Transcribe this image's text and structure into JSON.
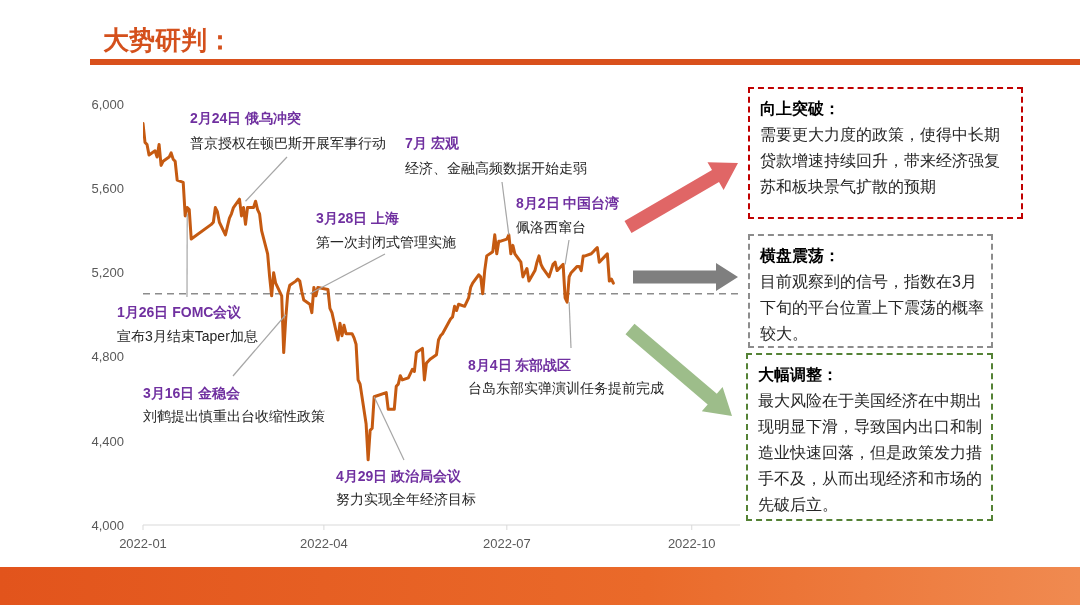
{
  "chart_data": [
    {
      "type": "line",
      "title": "大势研判：",
      "x": [
        "2022-01-04",
        "2022-01-05",
        "2022-01-06",
        "2022-01-07",
        "2022-01-10",
        "2022-01-11",
        "2022-01-12",
        "2022-01-13",
        "2022-01-14",
        "2022-01-17",
        "2022-01-18",
        "2022-01-19",
        "2022-01-20",
        "2022-01-21",
        "2022-01-24",
        "2022-01-25",
        "2022-01-26",
        "2022-01-27",
        "2022-01-28",
        "2022-02-07",
        "2022-02-08",
        "2022-02-09",
        "2022-02-10",
        "2022-02-11",
        "2022-02-14",
        "2022-02-15",
        "2022-02-16",
        "2022-02-17",
        "2022-02-18",
        "2022-02-21",
        "2022-02-22",
        "2022-02-23",
        "2022-02-24",
        "2022-02-25",
        "2022-02-28",
        "2022-03-01",
        "2022-03-02",
        "2022-03-03",
        "2022-03-04",
        "2022-03-07",
        "2022-03-08",
        "2022-03-09",
        "2022-03-10",
        "2022-03-11",
        "2022-03-14",
        "2022-03-15",
        "2022-03-16",
        "2022-03-17",
        "2022-03-18",
        "2022-03-21",
        "2022-03-22",
        "2022-03-23",
        "2022-03-24",
        "2022-03-25",
        "2022-03-28",
        "2022-03-29",
        "2022-03-30",
        "2022-03-31",
        "2022-04-01",
        "2022-04-06",
        "2022-04-07",
        "2022-04-08",
        "2022-04-11",
        "2022-04-12",
        "2022-04-13",
        "2022-04-14",
        "2022-04-15",
        "2022-04-18",
        "2022-04-19",
        "2022-04-20",
        "2022-04-21",
        "2022-04-22",
        "2022-04-25",
        "2022-04-26",
        "2022-04-27",
        "2022-04-28",
        "2022-04-29",
        "2022-05-05",
        "2022-05-06",
        "2022-05-09",
        "2022-05-10",
        "2022-05-11",
        "2022-05-12",
        "2022-05-13",
        "2022-05-16",
        "2022-05-17",
        "2022-05-18",
        "2022-05-19",
        "2022-05-20",
        "2022-05-23",
        "2022-05-24",
        "2022-05-25",
        "2022-05-26",
        "2022-05-27",
        "2022-05-30",
        "2022-05-31",
        "2022-06-01",
        "2022-06-02",
        "2022-06-06",
        "2022-06-07",
        "2022-06-08",
        "2022-06-09",
        "2022-06-10",
        "2022-06-13",
        "2022-06-14",
        "2022-06-15",
        "2022-06-16",
        "2022-06-17",
        "2022-06-20",
        "2022-06-21",
        "2022-06-22",
        "2022-06-23",
        "2022-06-24",
        "2022-06-27",
        "2022-06-28",
        "2022-06-29",
        "2022-06-30",
        "2022-07-01",
        "2022-07-04",
        "2022-07-05",
        "2022-07-06",
        "2022-07-07",
        "2022-07-08",
        "2022-07-11",
        "2022-07-12",
        "2022-07-13",
        "2022-07-14",
        "2022-07-15",
        "2022-07-18",
        "2022-07-19",
        "2022-07-20",
        "2022-07-21",
        "2022-07-22",
        "2022-07-25",
        "2022-07-26",
        "2022-07-27",
        "2022-07-28",
        "2022-07-29",
        "2022-08-01",
        "2022-08-02",
        "2022-08-03",
        "2022-08-04",
        "2022-08-05",
        "2022-08-08",
        "2022-08-09",
        "2022-08-10",
        "2022-08-11",
        "2022-08-12",
        "2022-08-15",
        "2022-08-16",
        "2022-08-17",
        "2022-08-18",
        "2022-08-19",
        "2022-08-22",
        "2022-08-23",
        "2022-08-24",
        "2022-08-25",
        "2022-08-26"
      ],
      "series": [
        {
          "color": "#c55a11",
          "values": [
            5910,
            5820,
            5810,
            5760,
            5780,
            5750,
            5810,
            5710,
            5730,
            5750,
            5770,
            5740,
            5730,
            5640,
            5630,
            5470,
            5510,
            5500,
            5360,
            5430,
            5440,
            5510,
            5490,
            5440,
            5380,
            5420,
            5460,
            5480,
            5510,
            5550,
            5470,
            5510,
            5430,
            5510,
            5510,
            5540,
            5500,
            5480,
            5400,
            5290,
            5180,
            5090,
            5200,
            5150,
            5090,
            4820,
            4980,
            5100,
            5140,
            5160,
            5170,
            5160,
            5110,
            5070,
            5050,
            5010,
            5130,
            5090,
            5130,
            5120,
            5030,
            5010,
            4880,
            4960,
            4900,
            4950,
            4910,
            4910,
            4890,
            4860,
            4690,
            4670,
            4480,
            4310,
            4450,
            4460,
            4610,
            4630,
            4550,
            4550,
            4660,
            4670,
            4710,
            4690,
            4700,
            4720,
            4740,
            4730,
            4820,
            4840,
            4690,
            4770,
            4780,
            4790,
            4810,
            4880,
            4900,
            4910,
            4980,
            4990,
            5040,
            5020,
            5050,
            5040,
            5060,
            5080,
            5130,
            5150,
            5190,
            5180,
            5100,
            5210,
            5280,
            5300,
            5380,
            5290,
            5350,
            5350,
            5360,
            5380,
            5290,
            5330,
            5290,
            5250,
            5180,
            5200,
            5220,
            5160,
            5210,
            5250,
            5280,
            5240,
            5220,
            5180,
            5210,
            5240,
            5250,
            5210,
            5240,
            5080,
            5060,
            5180,
            5200,
            5230,
            5230,
            5210,
            5280,
            5280,
            5290,
            5300,
            5310,
            5320,
            5250,
            5280,
            5290,
            5160,
            5170,
            5150
          ]
        }
      ],
      "xlim": [
        "2022-01-04",
        "2022-10-28"
      ],
      "xticks": [
        {
          "value": "2022-01-04",
          "label": "2022-01"
        },
        {
          "value": "2022-04-04",
          "label": "2022-04"
        },
        {
          "value": "2022-07-04",
          "label": "2022-07"
        },
        {
          "value": "2022-10-04",
          "label": "2022-10"
        }
      ],
      "ylim": [
        4000,
        6000
      ],
      "yticks": [
        {
          "value": 4000,
          "label": "4,000"
        },
        {
          "value": 4400,
          "label": "4,400"
        },
        {
          "value": 4800,
          "label": "4,800"
        },
        {
          "value": 5200,
          "label": "5,200"
        },
        {
          "value": 5600,
          "label": "5,600"
        },
        {
          "value": 6000,
          "label": "6,000"
        }
      ],
      "ref_lines": [
        {
          "axis": "y",
          "value": 5100,
          "color": "#8c8c8c",
          "line_style": "dashed"
        }
      ],
      "annotations": [
        {
          "text": "1月26日 FOMC会议",
          "x": "2022-01-26",
          "y": 5480
        },
        "宣布3月结束Taper加息",
        "2月24日 俄乌冲突",
        {
          "text": "普京授权在顿巴斯开展军事行动",
          "x": "2022-02-24",
          "y": 5540
        },
        {
          "text": "3月16日 金稳会",
          "x": "2022-03-16",
          "y": 5000
        },
        "刘鹤提出慎重出台收缩性政策",
        "3月28日 上海",
        {
          "text": "第一次封闭式管理实施",
          "x": "2022-03-28",
          "y": 5100
        },
        {
          "text": "4月29日 政治局会议",
          "x": "2022-04-29",
          "y": 4610
        },
        "努力实现全年经济目标",
        "7月 宏观",
        {
          "text": "经济、金融高频数据开始走弱",
          "x": "2022-07-05",
          "y": 5380
        },
        "8月2日 中国台湾",
        {
          "text": "佩洛西窜台",
          "x": "2022-08-02",
          "y": 5240
        },
        {
          "text": "8月4日 东部战区",
          "x": "2022-08-04",
          "y": 5060
        },
        "台岛东部实弹演训任务提前完成"
      ]
    },
    {
      "type": "other",
      "title": "向上突破：",
      "annotations": [
        "需要更大力度的政策，使得中长期贷款增速持续回升，带来经济强复苏和板块景气扩散的预期"
      ]
    },
    {
      "type": "other",
      "title": "横盘震荡：",
      "annotations": [
        "目前观察到的信号，指数在3月下旬的平台位置上下震荡的概率较大。"
      ]
    },
    {
      "type": "other",
      "title": "大幅调整：",
      "annotations": [
        "最大风险在于美国经济在中期出现明显下滑，导致国内出口和制造业快速回落，但是政策发力措手不及，从而出现经济和市场的先破后立。"
      ]
    }
  ]
}
